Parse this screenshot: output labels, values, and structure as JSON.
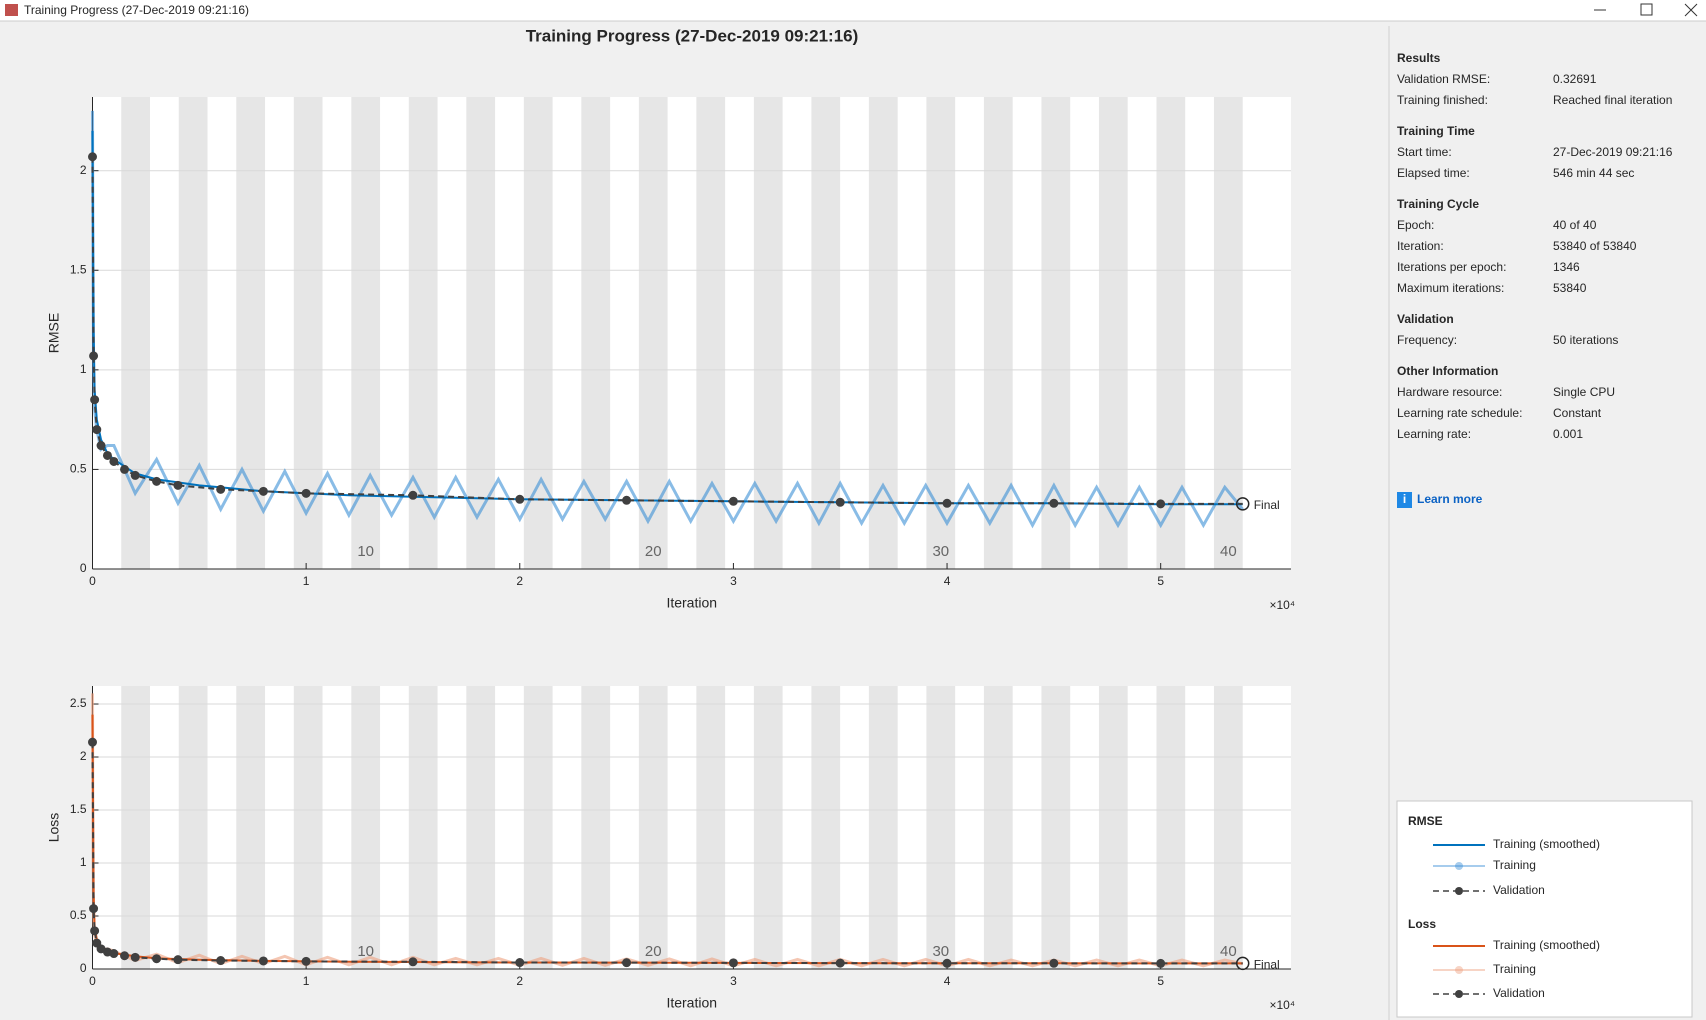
{
  "window": {
    "title": "Training Progress (27-Dec-2019 09:21:16)"
  },
  "chart_data": [
    {
      "type": "line",
      "title": "Training Progress (27-Dec-2019 09:21:16)",
      "x_label": "Iteration",
      "y_label": "RMSE",
      "x_exponent_label": "×10⁴",
      "annotation": "Final",
      "xlim": [
        0,
        56100
      ],
      "xticks": [
        0,
        {
          "value": 10000,
          "label": "1"
        },
        {
          "value": 20000,
          "label": "2"
        },
        {
          "value": 30000,
          "label": "3"
        },
        {
          "value": 40000,
          "label": "4"
        },
        {
          "value": 50000,
          "label": "5"
        }
      ],
      "ylim": [
        0,
        2.37
      ],
      "yticks": [
        0,
        0.5,
        1,
        1.5,
        2
      ],
      "grid": true,
      "epoch_labels": [
        10,
        20,
        30,
        40
      ],
      "series": [
        {
          "name": "Training",
          "color": "#3a8fd6",
          "x": [
            0,
            25,
            50,
            100,
            200,
            400,
            700,
            1000,
            2000,
            3000,
            4000,
            5000,
            6000,
            7000,
            8000,
            9000,
            10000,
            11000,
            12000,
            13000,
            14000,
            15000,
            16000,
            17000,
            18000,
            19000,
            20000,
            21000,
            22000,
            23000,
            24000,
            25000,
            26000,
            27000,
            28000,
            29000,
            30000,
            31000,
            32000,
            33000,
            34000,
            35000,
            36000,
            37000,
            38000,
            39000,
            40000,
            41000,
            42000,
            43000,
            44000,
            45000,
            46000,
            47000,
            48000,
            49000,
            50000,
            51000,
            52000,
            53000,
            53840
          ],
          "values": [
            2.3,
            1.5,
            1.0,
            0.8,
            0.7,
            0.6,
            0.62,
            0.62,
            0.38,
            0.55,
            0.33,
            0.52,
            0.3,
            0.5,
            0.29,
            0.49,
            0.28,
            0.48,
            0.27,
            0.47,
            0.27,
            0.46,
            0.26,
            0.46,
            0.26,
            0.45,
            0.25,
            0.45,
            0.25,
            0.44,
            0.25,
            0.44,
            0.24,
            0.44,
            0.24,
            0.43,
            0.24,
            0.43,
            0.24,
            0.43,
            0.23,
            0.43,
            0.23,
            0.42,
            0.23,
            0.42,
            0.23,
            0.42,
            0.23,
            0.42,
            0.22,
            0.42,
            0.22,
            0.41,
            0.22,
            0.41,
            0.22,
            0.41,
            0.22,
            0.41,
            0.3
          ]
        },
        {
          "name": "Training (smoothed)",
          "color": "#0072bd",
          "x": [
            0,
            50,
            100,
            200,
            400,
            700,
            1000,
            2000,
            3000,
            5000,
            8000,
            12000,
            16000,
            20000,
            25000,
            30000,
            35000,
            40000,
            45000,
            50000,
            53840
          ],
          "values": [
            2.2,
            1.2,
            0.9,
            0.75,
            0.65,
            0.58,
            0.55,
            0.48,
            0.45,
            0.42,
            0.39,
            0.37,
            0.36,
            0.35,
            0.345,
            0.34,
            0.335,
            0.33,
            0.33,
            0.325,
            0.325
          ]
        },
        {
          "name": "Validation",
          "color": "#404040",
          "x": [
            0,
            50,
            100,
            200,
            400,
            700,
            1000,
            1500,
            2000,
            3000,
            4000,
            6000,
            8000,
            10000,
            15000,
            20000,
            25000,
            30000,
            35000,
            40000,
            45000,
            50000,
            53840
          ],
          "values": [
            2.07,
            1.07,
            0.85,
            0.7,
            0.62,
            0.57,
            0.54,
            0.5,
            0.47,
            0.44,
            0.42,
            0.4,
            0.39,
            0.38,
            0.37,
            0.35,
            0.345,
            0.34,
            0.335,
            0.33,
            0.33,
            0.327,
            0.32691
          ]
        }
      ]
    },
    {
      "type": "line",
      "x_label": "Iteration",
      "y_label": "Loss",
      "x_exponent_label": "×10⁴",
      "annotation": "Final",
      "xlim": [
        0,
        56100
      ],
      "xticks": [
        0,
        {
          "value": 10000,
          "label": "1"
        },
        {
          "value": 20000,
          "label": "2"
        },
        {
          "value": 30000,
          "label": "3"
        },
        {
          "value": 40000,
          "label": "4"
        },
        {
          "value": 50000,
          "label": "5"
        }
      ],
      "ylim": [
        0,
        2.67
      ],
      "yticks": [
        0,
        0.5,
        1,
        1.5,
        2,
        2.5
      ],
      "grid": true,
      "epoch_labels": [
        10,
        20,
        30,
        40
      ],
      "series": [
        {
          "name": "Training",
          "color": "#eda07e",
          "x": [
            0,
            25,
            50,
            100,
            200,
            400,
            700,
            1000,
            2000,
            3000,
            4000,
            5000,
            6000,
            7000,
            8000,
            9000,
            10000,
            11000,
            12000,
            13000,
            14000,
            15000,
            16000,
            17000,
            18000,
            19000,
            20000,
            21000,
            22000,
            23000,
            24000,
            25000,
            26000,
            27000,
            28000,
            29000,
            30000,
            31000,
            32000,
            33000,
            34000,
            35000,
            36000,
            37000,
            38000,
            39000,
            40000,
            41000,
            42000,
            43000,
            44000,
            45000,
            46000,
            47000,
            48000,
            49000,
            50000,
            51000,
            52000,
            53000,
            53840
          ],
          "values": [
            2.6,
            1.1,
            0.5,
            0.32,
            0.25,
            0.18,
            0.19,
            0.17,
            0.08,
            0.14,
            0.06,
            0.13,
            0.05,
            0.12,
            0.05,
            0.12,
            0.04,
            0.11,
            0.04,
            0.11,
            0.04,
            0.11,
            0.04,
            0.1,
            0.04,
            0.1,
            0.035,
            0.1,
            0.035,
            0.1,
            0.035,
            0.095,
            0.035,
            0.095,
            0.03,
            0.095,
            0.03,
            0.09,
            0.03,
            0.09,
            0.03,
            0.09,
            0.03,
            0.09,
            0.03,
            0.09,
            0.03,
            0.09,
            0.03,
            0.085,
            0.03,
            0.085,
            0.03,
            0.085,
            0.03,
            0.085,
            0.03,
            0.085,
            0.03,
            0.085,
            0.05
          ]
        },
        {
          "name": "Training (smoothed)",
          "color": "#d95319",
          "x": [
            0,
            50,
            100,
            200,
            400,
            700,
            1000,
            2000,
            3000,
            5000,
            8000,
            12000,
            16000,
            20000,
            25000,
            30000,
            35000,
            40000,
            45000,
            50000,
            53840
          ],
          "values": [
            2.4,
            0.7,
            0.4,
            0.28,
            0.21,
            0.17,
            0.15,
            0.12,
            0.1,
            0.088,
            0.076,
            0.068,
            0.065,
            0.061,
            0.06,
            0.058,
            0.056,
            0.054,
            0.054,
            0.053,
            0.053
          ]
        },
        {
          "name": "Validation",
          "color": "#404040",
          "x": [
            0,
            50,
            100,
            200,
            400,
            700,
            1000,
            1500,
            2000,
            3000,
            4000,
            6000,
            8000,
            10000,
            15000,
            20000,
            25000,
            30000,
            35000,
            40000,
            45000,
            50000,
            53840
          ],
          "values": [
            2.14,
            0.57,
            0.36,
            0.245,
            0.19,
            0.16,
            0.146,
            0.125,
            0.11,
            0.097,
            0.088,
            0.08,
            0.076,
            0.072,
            0.068,
            0.061,
            0.06,
            0.058,
            0.056,
            0.054,
            0.054,
            0.053,
            0.053
          ]
        }
      ]
    }
  ],
  "panel": {
    "sections": [
      {
        "heading": "Results",
        "rows": [
          {
            "label": "Validation RMSE:",
            "value": "0.32691"
          },
          {
            "label": "Training finished:",
            "value": "Reached final iteration"
          }
        ]
      },
      {
        "heading": "Training Time",
        "rows": [
          {
            "label": "Start time:",
            "value": "27-Dec-2019 09:21:16"
          },
          {
            "label": "Elapsed time:",
            "value": "546 min 44 sec"
          }
        ]
      },
      {
        "heading": "Training Cycle",
        "rows": [
          {
            "label": "Epoch:",
            "value": "40 of 40"
          },
          {
            "label": "Iteration:",
            "value": "53840 of 53840"
          },
          {
            "label": "Iterations per epoch:",
            "value": "1346"
          },
          {
            "label": "Maximum iterations:",
            "value": "53840"
          }
        ]
      },
      {
        "heading": "Validation",
        "rows": [
          {
            "label": "Frequency:",
            "value": "50 iterations"
          }
        ]
      },
      {
        "heading": "Other Information",
        "rows": [
          {
            "label": "Hardware resource:",
            "value": "Single CPU"
          },
          {
            "label": "Learning rate schedule:",
            "value": "Constant"
          },
          {
            "label": "Learning rate:",
            "value": "0.001"
          }
        ]
      }
    ],
    "link": "Learn more"
  }
}
